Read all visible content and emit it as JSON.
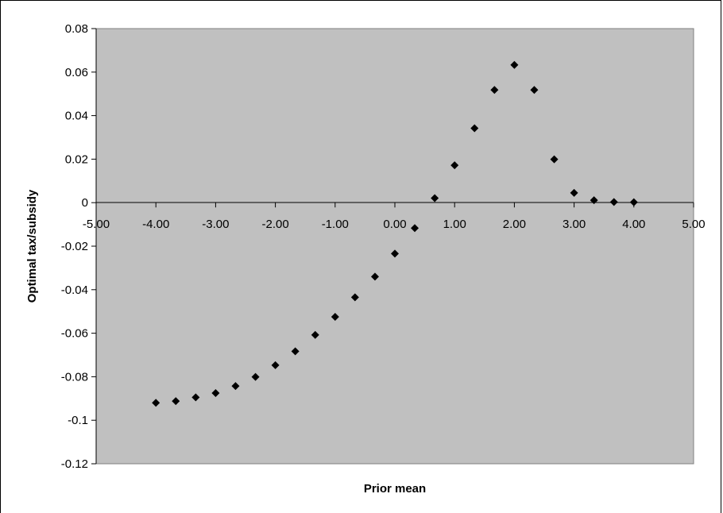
{
  "chart_data": {
    "type": "scatter",
    "title": "",
    "xlabel": "Prior mean",
    "ylabel": "Optimal tax/subsidy",
    "xlim": [
      -5,
      5
    ],
    "ylim": [
      -0.12,
      0.08
    ],
    "x_ticks": [
      -5,
      -4,
      -3,
      -2,
      -1,
      0,
      1,
      2,
      3,
      4,
      5
    ],
    "x_tick_labels": [
      "-5.00",
      "-4.00",
      "-3.00",
      "-2.00",
      "-1.00",
      "0.00",
      "1.00",
      "2.00",
      "3.00",
      "4.00",
      "5.00"
    ],
    "y_ticks": [
      0.08,
      0.06,
      0.04,
      0.02,
      0,
      -0.02,
      -0.04,
      -0.06,
      -0.08,
      -0.1,
      -0.12
    ],
    "y_tick_labels": [
      "0.08",
      "0.06",
      "0.04",
      "0.02",
      "0",
      "-0.02",
      "-0.04",
      "-0.06",
      "-0.08",
      "-0.1",
      "-0.12"
    ],
    "grid": false,
    "legend": "none",
    "colors": {
      "plot_background": "#c0c0c0",
      "marker": "#000000",
      "axis": "#000000"
    },
    "series": [
      {
        "x": [
          -4.0,
          -3.667,
          -3.333,
          -3.0,
          -2.667,
          -2.333,
          -2.0,
          -1.667,
          -1.333,
          -1.0,
          -0.667,
          -0.333,
          0.0,
          0.333,
          0.667,
          1.0,
          1.333,
          1.667,
          2.0,
          2.333,
          2.667,
          3.0,
          3.333,
          3.667,
          4.0
        ],
        "y": [
          -0.092,
          -0.0912,
          -0.0895,
          -0.0875,
          -0.0843,
          -0.0801,
          -0.0747,
          -0.0683,
          -0.0608,
          -0.0525,
          -0.0435,
          -0.034,
          -0.0234,
          -0.0117,
          0.0021,
          0.0172,
          0.0342,
          0.0518,
          0.0633,
          0.0518,
          0.0199,
          0.0045,
          0.0011,
          0.0003,
          0.0002
        ]
      }
    ]
  }
}
